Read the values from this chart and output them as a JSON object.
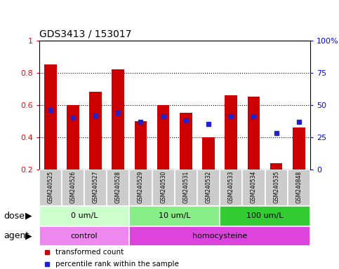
{
  "title": "GDS3413 / 153017",
  "samples": [
    "GSM240525",
    "GSM240526",
    "GSM240527",
    "GSM240528",
    "GSM240529",
    "GSM240530",
    "GSM240531",
    "GSM240532",
    "GSM240533",
    "GSM240534",
    "GSM240535",
    "GSM240848"
  ],
  "transformed_count": [
    0.85,
    0.6,
    0.68,
    0.82,
    0.5,
    0.6,
    0.55,
    0.4,
    0.66,
    0.65,
    0.24,
    0.46
  ],
  "percentile_rank_pct": [
    46,
    40,
    42,
    44,
    37,
    41,
    38,
    35,
    41,
    41,
    28,
    37
  ],
  "ylim_left": [
    0.2,
    1.0
  ],
  "ylim_right": [
    0,
    100
  ],
  "bar_color": "#cc0000",
  "dot_color": "#2222cc",
  "label_bg": "#cccccc",
  "dose_groups": [
    {
      "label": "0 um/L",
      "start": 0,
      "end": 4,
      "color": "#ccffcc"
    },
    {
      "label": "10 um/L",
      "start": 4,
      "end": 8,
      "color": "#88ee88"
    },
    {
      "label": "100 um/L",
      "start": 8,
      "end": 12,
      "color": "#33cc33"
    }
  ],
  "agent_groups": [
    {
      "label": "control",
      "start": 0,
      "end": 4,
      "color": "#ee88ee"
    },
    {
      "label": "homocysteine",
      "start": 4,
      "end": 12,
      "color": "#dd44dd"
    }
  ],
  "dose_label": "dose",
  "agent_label": "agent",
  "legend_items": [
    {
      "label": "transformed count",
      "color": "#cc0000"
    },
    {
      "label": "percentile rank within the sample",
      "color": "#2222cc"
    }
  ]
}
